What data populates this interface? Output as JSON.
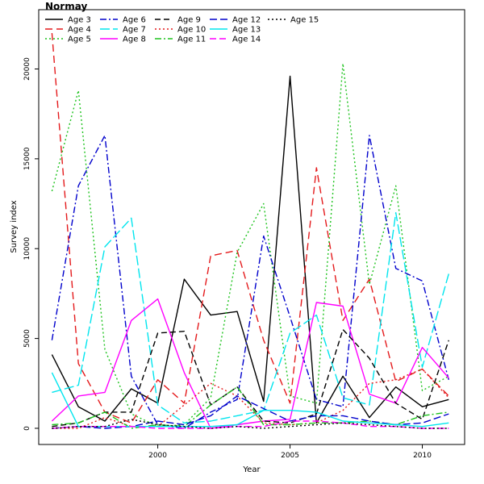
{
  "chart_data": {
    "type": "line",
    "title": "Normay",
    "xlabel": "Year",
    "ylabel": "Survey index",
    "xlim": [
      1995.5,
      2011.6
    ],
    "ylim": [
      -900,
      23300
    ],
    "xticks": [
      2000,
      2005,
      2010
    ],
    "yticks": [
      0,
      5000,
      10000,
      15000,
      20000
    ],
    "grid": false,
    "legend_position": "top-left",
    "x": [
      1996,
      1997,
      1998,
      1999,
      2000,
      2001,
      2002,
      2003,
      2004,
      2005,
      2006,
      2007,
      2008,
      2009,
      2010,
      2011
    ],
    "series": [
      {
        "name": "Age 3",
        "color": "#000000",
        "dash": "",
        "values": [
          4100,
          1200,
          400,
          2200,
          1400,
          8300,
          6300,
          6500,
          1500,
          19600,
          300,
          2900,
          600,
          2300,
          1200,
          1600
        ]
      },
      {
        "name": "Age 4",
        "color": "#e41a1c",
        "dash": "9 5",
        "values": [
          22000,
          3600,
          900,
          300,
          2700,
          1400,
          9600,
          9900,
          4900,
          1400,
          14500,
          6000,
          8300,
          2600,
          3300,
          1800
        ]
      },
      {
        "name": "Age 5",
        "color": "#1ec31e",
        "dash": "2 3",
        "values": [
          13200,
          18800,
          4400,
          800,
          100,
          200,
          1700,
          9800,
          12500,
          1800,
          1400,
          20300,
          8000,
          13500,
          2100,
          2900
        ]
      },
      {
        "name": "Age 6",
        "color": "#0000cc",
        "dash": "8 3 2 3",
        "values": [
          4900,
          13500,
          16300,
          2900,
          200,
          0,
          900,
          1600,
          10700,
          6200,
          1600,
          1200,
          16300,
          8900,
          8200,
          2700
        ]
      },
      {
        "name": "Age 7",
        "color": "#00e5ee",
        "dash": "12 4",
        "values": [
          2000,
          2400,
          10100,
          11700,
          1300,
          300,
          400,
          700,
          1000,
          5300,
          6300,
          1700,
          1300,
          12000,
          3400,
          8600
        ]
      },
      {
        "name": "Age 8",
        "color": "#ff00ff",
        "dash": "",
        "values": [
          400,
          1800,
          2000,
          6000,
          7200,
          3100,
          0,
          200,
          400,
          500,
          7000,
          6800,
          1900,
          1400,
          4500,
          2800
        ]
      },
      {
        "name": "Age 9",
        "color": "#000000",
        "dash": "7 4",
        "values": [
          100,
          300,
          900,
          900,
          5300,
          5400,
          1300,
          2300,
          400,
          300,
          800,
          5500,
          3900,
          1400,
          500,
          4900
        ]
      },
      {
        "name": "Age 10",
        "color": "#e41a1c",
        "dash": "2 3",
        "values": [
          0,
          0,
          600,
          100,
          100,
          1300,
          2500,
          1800,
          300,
          200,
          300,
          1000,
          2500,
          2700,
          3300,
          1700
        ]
      },
      {
        "name": "Age 11",
        "color": "#1ec31e",
        "dash": "8 3 2 3",
        "values": [
          200,
          300,
          900,
          0,
          200,
          100,
          1300,
          2300,
          200,
          200,
          300,
          300,
          400,
          200,
          700,
          900
        ]
      },
      {
        "name": "Age 12",
        "color": "#0000cc",
        "dash": "9 4",
        "values": [
          0,
          100,
          0,
          100,
          400,
          200,
          700,
          1800,
          1100,
          400,
          700,
          700,
          400,
          200,
          300,
          800
        ]
      },
      {
        "name": "Age 13",
        "color": "#00e5ee",
        "dash": "",
        "values": [
          3100,
          100,
          100,
          100,
          100,
          100,
          100,
          200,
          1000,
          1000,
          900,
          400,
          300,
          200,
          100,
          300
        ]
      },
      {
        "name": "Age 14",
        "color": "#ff00ff",
        "dash": "8 4",
        "values": [
          0,
          100,
          100,
          100,
          0,
          0,
          0,
          100,
          100,
          400,
          400,
          300,
          100,
          100,
          0,
          0
        ]
      },
      {
        "name": "Age 15",
        "color": "#000000",
        "dash": "2 3",
        "values": [
          0,
          100,
          100,
          500,
          200,
          100,
          0,
          100,
          0,
          100,
          200,
          300,
          200,
          100,
          0,
          0
        ]
      }
    ]
  }
}
